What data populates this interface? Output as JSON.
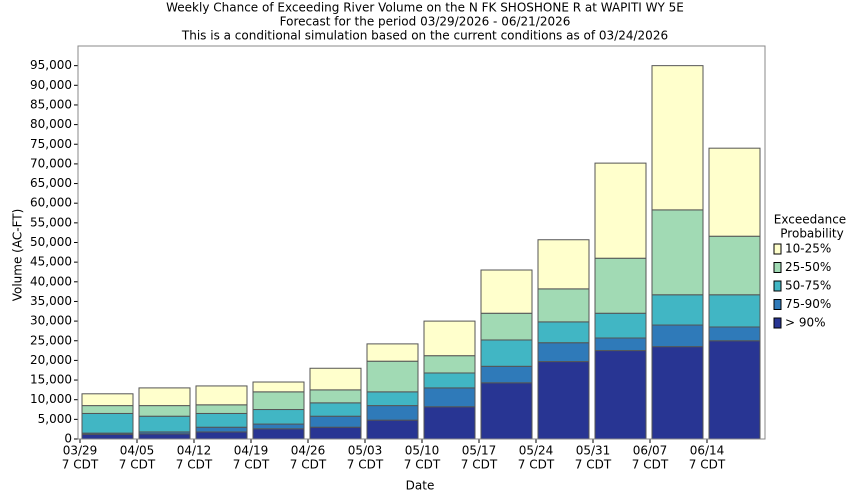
{
  "chart_data": {
    "type": "stacked_bar",
    "title": "Weekly Chance of Exceeding River Volume on the N FK SHOSHONE R at WAPITI WY 5E",
    "subtitles": [
      "Forecast for the period 03/29/2026 - 06/21/2026",
      "This is a conditional simulation based on the current conditions as of 03/24/2026"
    ],
    "x_label": "Date",
    "y_label": "Volume (AC-FT)",
    "legend_title": [
      "Exceedance",
      "Probability"
    ],
    "legend": "right",
    "categories": [
      [
        "03/29",
        "7 CDT"
      ],
      [
        "04/05",
        "7 CDT"
      ],
      [
        "04/12",
        "7 CDT"
      ],
      [
        "04/19",
        "7 CDT"
      ],
      [
        "04/26",
        "7 CDT"
      ],
      [
        "05/03",
        "7 CDT"
      ],
      [
        "05/10",
        "7 CDT"
      ],
      [
        "05/17",
        "7 CDT"
      ],
      [
        "05/24",
        "7 CDT"
      ],
      [
        "05/31",
        "7 CDT"
      ],
      [
        "06/07",
        "7 CDT"
      ],
      [
        "06/14",
        "7 CDT"
      ]
    ],
    "series": [
      {
        "name": "> 90%",
        "color": "#283593",
        "values": [
          1200,
          1300,
          1800,
          2600,
          3000,
          4800,
          8200,
          14300,
          19700,
          22500,
          23500,
          25000
        ]
      },
      {
        "name": "75-90%",
        "color": "#2f7ab9",
        "values": [
          300,
          500,
          1200,
          1200,
          2800,
          3700,
          4800,
          4200,
          4800,
          3200,
          5500,
          3500
        ]
      },
      {
        "name": "50-75%",
        "color": "#41b6c4",
        "values": [
          5000,
          4000,
          3500,
          3700,
          3400,
          3500,
          3800,
          6700,
          5300,
          6300,
          7700,
          8200
        ]
      },
      {
        "name": "25-50%",
        "color": "#a1dab4",
        "values": [
          2000,
          2700,
          2200,
          4500,
          3300,
          7800,
          4400,
          6800,
          8400,
          14000,
          21600,
          14900
        ]
      },
      {
        "name": "10-25%",
        "color": "#ffffcc",
        "values": [
          3000,
          4500,
          4800,
          2500,
          5500,
          4400,
          8800,
          11000,
          12500,
          24200,
          36700,
          22400
        ]
      }
    ],
    "ylim": [
      0,
      100000
    ],
    "yticks": [
      0,
      {
        "value": 5000,
        "label": "5,000"
      },
      {
        "value": 10000,
        "label": "10,000"
      },
      {
        "value": 15000,
        "label": "15,000"
      },
      {
        "value": 20000,
        "label": "20,000"
      },
      {
        "value": 25000,
        "label": "25,000"
      },
      {
        "value": 30000,
        "label": "30,000"
      },
      {
        "value": 35000,
        "label": "35,000"
      },
      {
        "value": 40000,
        "label": "40,000"
      },
      {
        "value": 45000,
        "label": "45,000"
      },
      {
        "value": 50000,
        "label": "50,000"
      },
      {
        "value": 55000,
        "label": "55,000"
      },
      {
        "value": 60000,
        "label": "60,000"
      },
      {
        "value": 65000,
        "label": "65,000"
      },
      {
        "value": 70000,
        "label": "70,000"
      },
      {
        "value": 75000,
        "label": "75,000"
      },
      {
        "value": 80000,
        "label": "80,000"
      },
      {
        "value": 85000,
        "label": "85,000"
      },
      {
        "value": 90000,
        "label": "90,000"
      },
      {
        "value": 95000,
        "label": "95,000"
      }
    ],
    "grid": false
  }
}
